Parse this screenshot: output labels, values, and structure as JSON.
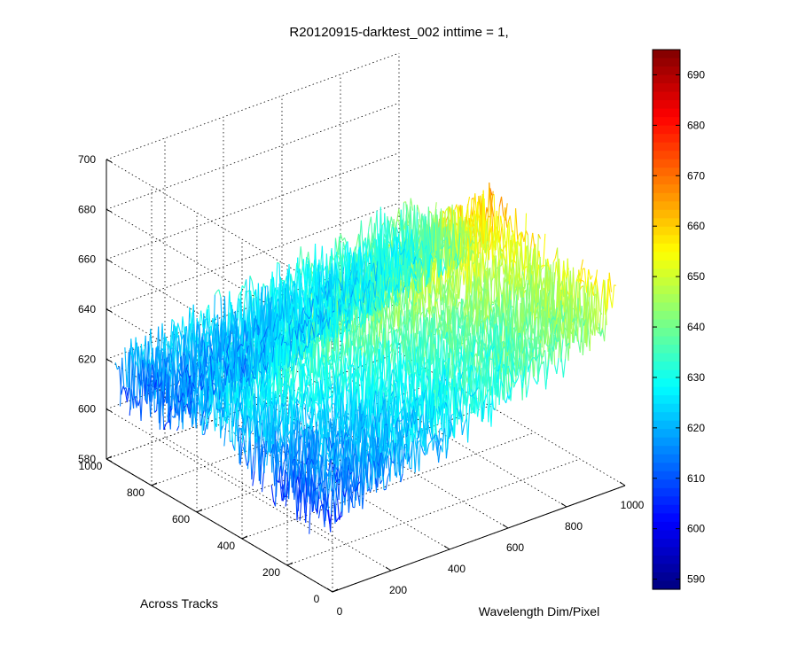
{
  "chart_data": {
    "type": "surface3d",
    "title": "R20120915-darktest_002 inttime = 1,",
    "xlabel": "Wavelength Dim/Pixel",
    "ylabel": "Across Tracks",
    "zlabel": "",
    "xlim": [
      0,
      1000
    ],
    "ylim": [
      0,
      1000
    ],
    "zlim": [
      580,
      700
    ],
    "x_ticks": [
      "0",
      "200",
      "400",
      "600",
      "800",
      "1000"
    ],
    "y_ticks": [
      "0",
      "200",
      "400",
      "600",
      "800",
      "1000"
    ],
    "z_ticks": [
      "580",
      "600",
      "620",
      "640",
      "660",
      "680",
      "700"
    ],
    "grid": true,
    "colormap": "jet",
    "colorbar": {
      "range": [
        588,
        695
      ],
      "ticks": [
        "590",
        "600",
        "610",
        "620",
        "630",
        "640",
        "650",
        "660",
        "670",
        "680",
        "690"
      ]
    },
    "surface_profile": {
      "description_free_note": "",
      "y_samples": [
        1000,
        800,
        600,
        400,
        200,
        0
      ],
      "mean_z_at_x0": [
        616,
        615,
        614,
        613,
        612,
        611
      ],
      "mean_z_at_x1000": [
        632,
        636,
        640,
        644,
        648,
        650
      ],
      "ridge_y": 550,
      "ridge_extra": 18,
      "noise_amplitude": 14
    }
  }
}
